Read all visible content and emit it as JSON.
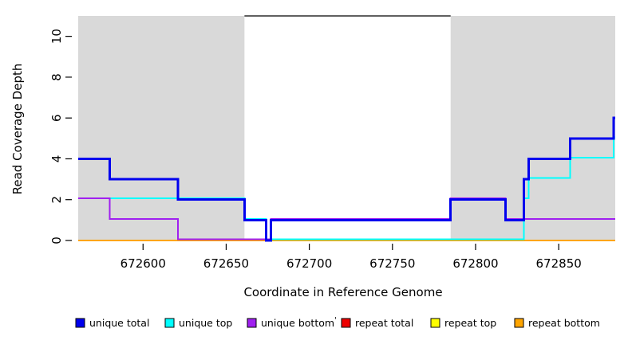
{
  "figure": {
    "x_axis_title": "Coordinate in Reference Genome",
    "y_axis_title": "Read Coverage Depth"
  },
  "chart_data": {
    "type": "line",
    "subtype": "step-coverage-plot",
    "title": "",
    "xlabel": "Coordinate in Reference Genome",
    "ylabel": "Read Coverage Depth",
    "xlim": [
      672561,
      672884
    ],
    "ylim": [
      0,
      11
    ],
    "grid": false,
    "x_ticks": [
      672600,
      672650,
      672700,
      672750,
      672800,
      672850
    ],
    "y_ticks": [
      0,
      2,
      4,
      6,
      8,
      10
    ],
    "shaded_regions": {
      "color": "#D9D9D9",
      "y_range": [
        0,
        11
      ],
      "ranges": [
        [
          672561,
          672661
        ],
        [
          672785,
          672884
        ]
      ]
    },
    "gap_top_line": {
      "y": 11,
      "x_range": [
        672661,
        672785
      ],
      "color": "#000000"
    },
    "series": [
      {
        "name": "unique total",
        "color": "#0000EE",
        "line_width": 3,
        "segments": [
          [
            672561,
            672580,
            4
          ],
          [
            672580,
            672621,
            3
          ],
          [
            672621,
            672661,
            2
          ],
          [
            672661,
            672674,
            1
          ],
          [
            672674,
            672677,
            0
          ],
          [
            672677,
            672785,
            1
          ],
          [
            672785,
            672818,
            2
          ],
          [
            672818,
            672829,
            1
          ],
          [
            672829,
            672832,
            3
          ],
          [
            672832,
            672857,
            4
          ],
          [
            672857,
            672883,
            5
          ],
          [
            672883,
            672884,
            6
          ]
        ]
      },
      {
        "name": "unique top",
        "color": "#00FFFF",
        "line_width": 2,
        "segments": [
          [
            672561,
            672661,
            2
          ],
          [
            672661,
            672674,
            1
          ],
          [
            672674,
            672829,
            0
          ],
          [
            672829,
            672832,
            2
          ],
          [
            672832,
            672857,
            3
          ],
          [
            672857,
            672883,
            4
          ],
          [
            672883,
            672884,
            5
          ]
        ]
      },
      {
        "name": "unique bottom",
        "color": "#A020F0",
        "line_width": 2,
        "segments": [
          [
            672561,
            672580,
            2
          ],
          [
            672580,
            672621,
            1
          ],
          [
            672621,
            672677,
            0
          ],
          [
            672677,
            672785,
            1
          ],
          [
            672785,
            672818,
            2
          ],
          [
            672818,
            672884,
            1
          ]
        ]
      },
      {
        "name": "repeat total",
        "color": "#EE0000",
        "line_width": 2,
        "segments": [
          [
            672561,
            672884,
            0
          ]
        ]
      },
      {
        "name": "repeat top",
        "color": "#FFFF00",
        "line_width": 2,
        "segments": [
          [
            672561,
            672884,
            0
          ]
        ]
      },
      {
        "name": "repeat bottom",
        "color": "#FFA500",
        "line_width": 2,
        "segments": [
          [
            672561,
            672884,
            0
          ]
        ]
      }
    ],
    "legend": {
      "position": "bottom",
      "stray_mark": "'",
      "items": [
        {
          "label": "unique total",
          "color": "#0000EE"
        },
        {
          "label": "unique top",
          "color": "#00FFFF"
        },
        {
          "label": "unique bottom",
          "color": "#A020F0"
        },
        {
          "label": "repeat total",
          "color": "#EE0000"
        },
        {
          "label": "repeat top",
          "color": "#FFFF00"
        },
        {
          "label": "repeat bottom",
          "color": "#FFA500"
        }
      ]
    }
  }
}
